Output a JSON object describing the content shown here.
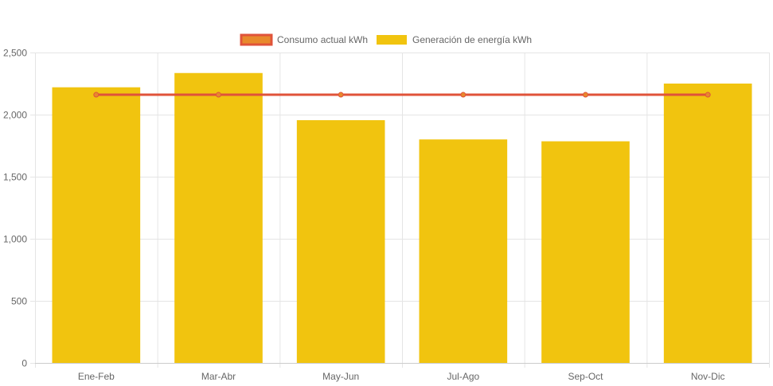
{
  "chart_data": {
    "type": "bar",
    "categories": [
      "Ene-Feb",
      "Mar-Abr",
      "May-Jun",
      "Jul-Ago",
      "Sep-Oct",
      "Nov-Dic"
    ],
    "series": [
      {
        "name": "Consumo actual kWh",
        "type": "line",
        "values": [
          2160,
          2160,
          2160,
          2160,
          2160,
          2160
        ],
        "color": "#e0533a",
        "fill_color": "#e8892c"
      },
      {
        "name": "Generación de energía kWh",
        "type": "bar",
        "values": [
          2220,
          2335,
          1955,
          1800,
          1785,
          2250
        ],
        "color": "#f1c40f"
      }
    ],
    "ylim": [
      0,
      2500
    ],
    "yticks": [
      "0",
      "500",
      "1,000",
      "1,500",
      "2,000",
      "2,500"
    ],
    "ytick_values": [
      0,
      500,
      1000,
      1500,
      2000,
      2500
    ],
    "grid": true,
    "legend": "top-center"
  }
}
